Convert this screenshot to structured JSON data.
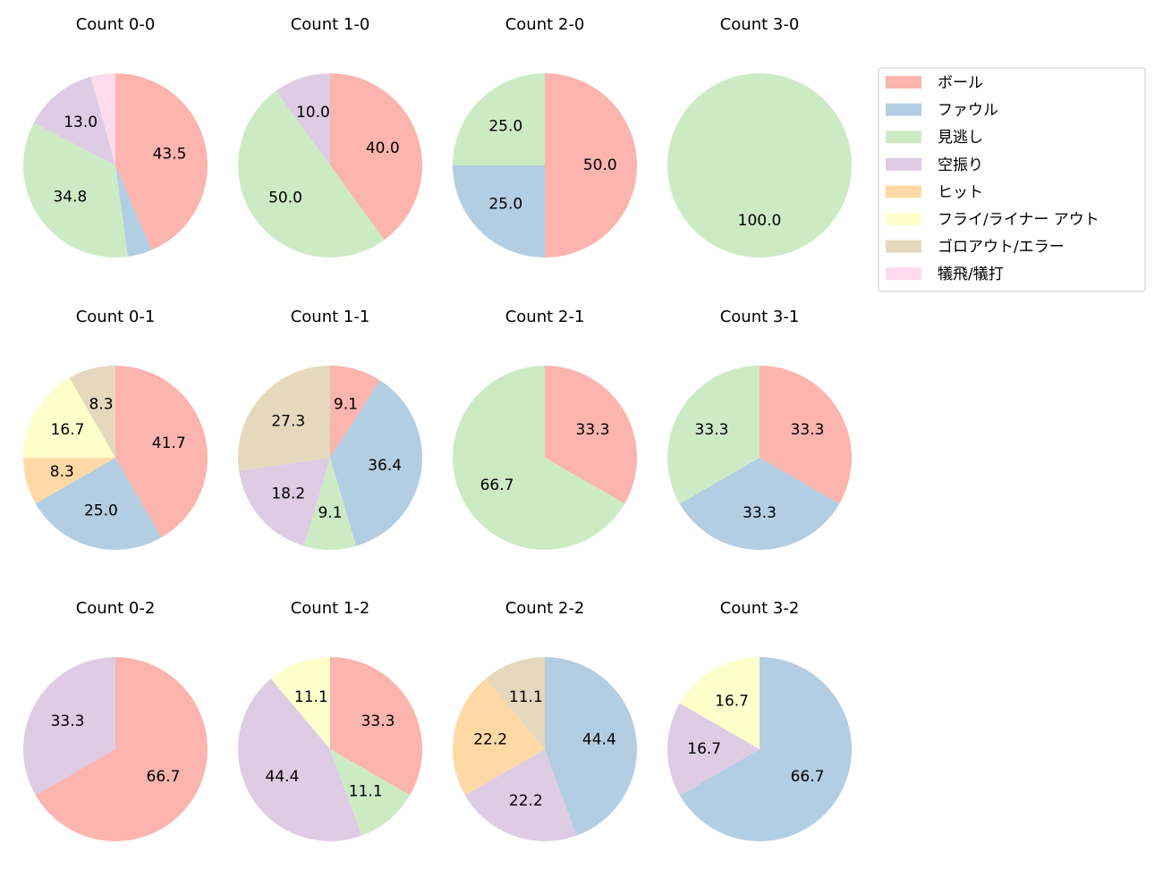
{
  "chart_data": [
    {
      "type": "pie",
      "title": "Count 0-0",
      "values": [
        43.5,
        4.3,
        34.8,
        13.0,
        0,
        0,
        0,
        4.3
      ],
      "value_labels": [
        "43.5",
        null,
        "34.8",
        "13.0",
        null,
        null,
        null,
        null
      ]
    },
    {
      "type": "pie",
      "title": "Count 1-0",
      "values": [
        40.0,
        0,
        50.0,
        10.0,
        0,
        0,
        0,
        0
      ],
      "value_labels": [
        "40.0",
        null,
        "50.0",
        "10.0",
        null,
        null,
        null,
        null
      ]
    },
    {
      "type": "pie",
      "title": "Count 2-0",
      "values": [
        50.0,
        25.0,
        25.0,
        0,
        0,
        0,
        0,
        0
      ],
      "value_labels": [
        "50.0",
        "25.0",
        "25.0",
        null,
        null,
        null,
        null,
        null
      ]
    },
    {
      "type": "pie",
      "title": "Count 3-0",
      "values": [
        0,
        0,
        100.0,
        0,
        0,
        0,
        0,
        0
      ],
      "value_labels": [
        null,
        null,
        "100.0",
        null,
        null,
        null,
        null,
        null
      ]
    },
    {
      "type": "pie",
      "title": "Count 0-1",
      "values": [
        41.7,
        25.0,
        0,
        0,
        8.3,
        16.7,
        8.3,
        0
      ],
      "value_labels": [
        "41.7",
        "25.0",
        null,
        null,
        "8.3",
        "16.7",
        "8.3",
        null
      ]
    },
    {
      "type": "pie",
      "title": "Count 1-1",
      "values": [
        9.1,
        36.4,
        9.1,
        18.2,
        0,
        0,
        27.3,
        0
      ],
      "value_labels": [
        "9.1",
        "36.4",
        "9.1",
        "18.2",
        null,
        null,
        "27.3",
        null
      ]
    },
    {
      "type": "pie",
      "title": "Count 2-1",
      "values": [
        33.3,
        0,
        66.7,
        0,
        0,
        0,
        0,
        0
      ],
      "value_labels": [
        "33.3",
        null,
        "66.7",
        null,
        null,
        null,
        null,
        null
      ]
    },
    {
      "type": "pie",
      "title": "Count 3-1",
      "values": [
        33.3,
        33.3,
        33.3,
        0,
        0,
        0,
        0,
        0
      ],
      "value_labels": [
        "33.3",
        "33.3",
        "33.3",
        null,
        null,
        null,
        null,
        null
      ]
    },
    {
      "type": "pie",
      "title": "Count 0-2",
      "values": [
        66.7,
        0,
        0,
        33.3,
        0,
        0,
        0,
        0
      ],
      "value_labels": [
        "66.7",
        null,
        null,
        "33.3",
        null,
        null,
        null,
        null
      ]
    },
    {
      "type": "pie",
      "title": "Count 1-2",
      "values": [
        33.3,
        0,
        11.1,
        44.4,
        0,
        11.1,
        0,
        0
      ],
      "value_labels": [
        "33.3",
        null,
        "11.1",
        "44.4",
        null,
        "11.1",
        null,
        null
      ]
    },
    {
      "type": "pie",
      "title": "Count 2-2",
      "values": [
        0,
        44.4,
        0,
        22.2,
        22.2,
        0,
        11.1,
        0
      ],
      "value_labels": [
        null,
        "44.4",
        null,
        "22.2",
        "22.2",
        null,
        "11.1",
        null
      ]
    },
    {
      "type": "pie",
      "title": "Count 3-2",
      "values": [
        0,
        66.7,
        0,
        16.7,
        0,
        16.7,
        0,
        0
      ],
      "value_labels": [
        null,
        "66.7",
        null,
        "16.7",
        null,
        "16.7",
        null,
        null
      ]
    }
  ],
  "legend": {
    "loc": "upper right",
    "labels": [
      "ボール",
      "ファウル",
      "見逃し",
      "空振り",
      "ヒット",
      "フライ/ライナー アウト",
      "ゴロアウト/エラー",
      "犠飛/犠打"
    ],
    "colors": [
      "#fbb4ae",
      "#b3cde3",
      "#ccebc5",
      "#decbe4",
      "#fed9a6",
      "#ffffcc",
      "#e5d8bd",
      "#fddaec"
    ]
  }
}
